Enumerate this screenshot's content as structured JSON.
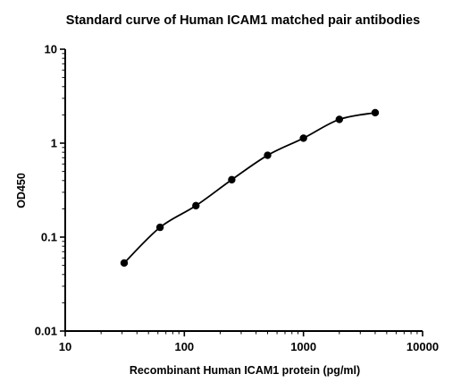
{
  "chart_data": {
    "type": "scatter",
    "title": "Standard curve of Human ICAM1 matched pair antibodies",
    "xlabel": "Recombinant Human ICAM1 protein (pg/ml)",
    "ylabel": "OD450",
    "x_scale": "log",
    "y_scale": "log",
    "xlim": [
      10,
      10000
    ],
    "ylim": [
      0.01,
      10
    ],
    "x_ticks": [
      10,
      100,
      1000,
      10000
    ],
    "x_tick_labels": [
      "10",
      "100",
      "1000",
      "10000"
    ],
    "y_ticks": [
      0.01,
      0.1,
      1,
      10
    ],
    "y_tick_labels": [
      "0.01",
      "0.1",
      "1",
      "10"
    ],
    "grid": false,
    "legend": "none",
    "x": [
      31.25,
      62.5,
      125,
      250,
      500,
      1000,
      2000,
      4000
    ],
    "y": [
      0.053,
      0.127,
      0.216,
      0.408,
      0.743,
      1.13,
      1.79,
      2.11
    ],
    "fit_curve": true,
    "colors": {
      "points": "#000000",
      "curve": "#000000",
      "axes": "#000000"
    }
  }
}
